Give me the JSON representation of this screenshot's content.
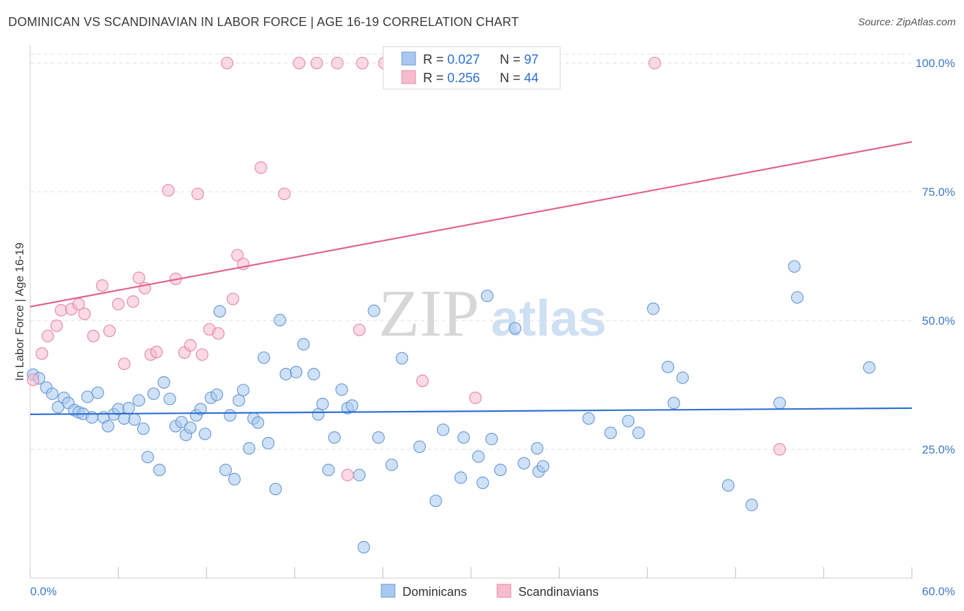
{
  "title": "DOMINICAN VS SCANDINAVIAN IN LABOR FORCE | AGE 16-19 CORRELATION CHART",
  "source": "Source: ZipAtlas.com",
  "watermark": {
    "zip": "ZIP",
    "atlas": "atlas"
  },
  "colors": {
    "blue_fill": "#a8c8ef",
    "blue_stroke": "#6b9bd8",
    "blue_line": "#2d6fd1",
    "pink_fill": "#f6bccd",
    "pink_stroke": "#e88aa6",
    "pink_line": "#e0628c",
    "axis_label": "#3b78c9",
    "grid": "#dcdcdc"
  },
  "legend_top": {
    "rows": [
      {
        "r_label": "R = ",
        "r_value": "0.027",
        "n_label": "N = ",
        "n_value": "97"
      },
      {
        "r_label": "R = ",
        "r_value": "0.256",
        "n_label": "N = ",
        "n_value": "44"
      }
    ]
  },
  "legend_bottom": [
    "Dominicans",
    "Scandinavians"
  ],
  "chart_data": {
    "type": "scatter",
    "title": "DOMINICAN VS SCANDINAVIAN IN LABOR FORCE | AGE 16-19 CORRELATION CHART",
    "xlabel": "",
    "ylabel": "In Labor Force | Age 16-19",
    "xlim": [
      0,
      60
    ],
    "ylim": [
      0,
      104
    ],
    "x_tick_labels": [
      "0.0%",
      "60.0%"
    ],
    "y_tick_labels": [
      "100.0%",
      "75.0%",
      "50.0%",
      "25.0%"
    ],
    "y_ticks": [
      100,
      75,
      50,
      25
    ],
    "grid": true,
    "legend_placement": "top-center",
    "series": [
      {
        "name": "Dominicans",
        "r": 0.027,
        "n": 97,
        "trend": [
          [
            0,
            31.8
          ],
          [
            60,
            33.0
          ]
        ],
        "points": [
          [
            0.2,
            39.5
          ],
          [
            0.6,
            38.8
          ],
          [
            1.1,
            37.0
          ],
          [
            1.5,
            35.8
          ],
          [
            1.9,
            33.2
          ],
          [
            2.3,
            35.0
          ],
          [
            2.6,
            34.0
          ],
          [
            3.0,
            32.6
          ],
          [
            3.3,
            32.2
          ],
          [
            3.6,
            31.9
          ],
          [
            3.9,
            35.2
          ],
          [
            4.2,
            31.2
          ],
          [
            4.6,
            36.0
          ],
          [
            5.0,
            31.2
          ],
          [
            5.3,
            29.5
          ],
          [
            5.7,
            31.8
          ],
          [
            6.0,
            32.8
          ],
          [
            6.4,
            31.0
          ],
          [
            6.7,
            33.0
          ],
          [
            7.1,
            30.8
          ],
          [
            7.4,
            34.5
          ],
          [
            7.7,
            29.0
          ],
          [
            8.0,
            23.5
          ],
          [
            8.4,
            35.8
          ],
          [
            8.8,
            21.0
          ],
          [
            9.1,
            38.0
          ],
          [
            9.5,
            34.8
          ],
          [
            9.9,
            29.5
          ],
          [
            10.3,
            30.3
          ],
          [
            10.6,
            27.8
          ],
          [
            10.9,
            29.2
          ],
          [
            11.3,
            31.6
          ],
          [
            11.6,
            32.8
          ],
          [
            11.9,
            28.0
          ],
          [
            12.3,
            35.0
          ],
          [
            12.7,
            35.6
          ],
          [
            12.9,
            51.8
          ],
          [
            13.3,
            21.0
          ],
          [
            13.6,
            31.6
          ],
          [
            13.9,
            19.2
          ],
          [
            14.2,
            34.5
          ],
          [
            14.5,
            36.5
          ],
          [
            14.9,
            25.2
          ],
          [
            15.2,
            31.0
          ],
          [
            15.5,
            30.2
          ],
          [
            15.9,
            42.8
          ],
          [
            16.2,
            26.2
          ],
          [
            16.7,
            17.3
          ],
          [
            17.0,
            50.1
          ],
          [
            17.4,
            39.6
          ],
          [
            18.1,
            40.0
          ],
          [
            18.6,
            45.4
          ],
          [
            19.3,
            39.6
          ],
          [
            19.6,
            31.8
          ],
          [
            19.9,
            33.8
          ],
          [
            20.3,
            21.0
          ],
          [
            20.7,
            27.3
          ],
          [
            21.2,
            36.6
          ],
          [
            21.6,
            33.0
          ],
          [
            21.9,
            33.5
          ],
          [
            22.4,
            20.0
          ],
          [
            22.7,
            6.0
          ],
          [
            23.4,
            51.9
          ],
          [
            23.7,
            27.3
          ],
          [
            24.6,
            22.0
          ],
          [
            25.3,
            42.7
          ],
          [
            26.5,
            25.5
          ],
          [
            27.6,
            15.0
          ],
          [
            28.1,
            28.8
          ],
          [
            29.3,
            19.5
          ],
          [
            29.5,
            27.3
          ],
          [
            30.5,
            23.6
          ],
          [
            30.8,
            18.5
          ],
          [
            31.1,
            54.8
          ],
          [
            31.4,
            27.0
          ],
          [
            32.0,
            21.0
          ],
          [
            33.0,
            48.5
          ],
          [
            33.6,
            22.3
          ],
          [
            34.6,
            20.7
          ],
          [
            34.9,
            21.7
          ],
          [
            34.5,
            25.2
          ],
          [
            38.0,
            31.0
          ],
          [
            39.5,
            28.2
          ],
          [
            40.7,
            30.5
          ],
          [
            41.4,
            28.2
          ],
          [
            42.4,
            52.3
          ],
          [
            43.4,
            41.0
          ],
          [
            43.8,
            34.0
          ],
          [
            44.4,
            38.9
          ],
          [
            47.5,
            18.0
          ],
          [
            49.1,
            14.2
          ],
          [
            51.0,
            34.0
          ],
          [
            52.0,
            60.5
          ],
          [
            52.2,
            54.5
          ],
          [
            57.1,
            40.9
          ]
        ]
      },
      {
        "name": "Scandinavians",
        "r": 0.256,
        "n": 44,
        "trend": [
          [
            0,
            52.7
          ],
          [
            60,
            84.7
          ]
        ],
        "points": [
          [
            0.2,
            38.5
          ],
          [
            0.8,
            43.6
          ],
          [
            1.2,
            47.0
          ],
          [
            1.8,
            49.0
          ],
          [
            2.1,
            52.0
          ],
          [
            2.8,
            52.2
          ],
          [
            3.3,
            53.2
          ],
          [
            3.7,
            51.3
          ],
          [
            4.3,
            47.0
          ],
          [
            4.9,
            56.8
          ],
          [
            5.4,
            48.0
          ],
          [
            6.0,
            53.2
          ],
          [
            6.4,
            41.6
          ],
          [
            7.0,
            53.7
          ],
          [
            7.4,
            58.3
          ],
          [
            7.8,
            56.3
          ],
          [
            8.2,
            43.4
          ],
          [
            8.6,
            43.9
          ],
          [
            9.4,
            75.3
          ],
          [
            9.9,
            58.1
          ],
          [
            10.5,
            43.8
          ],
          [
            10.9,
            45.2
          ],
          [
            11.4,
            74.6
          ],
          [
            11.7,
            43.4
          ],
          [
            12.2,
            48.3
          ],
          [
            12.8,
            47.5
          ],
          [
            13.4,
            100.0
          ],
          [
            13.8,
            54.2
          ],
          [
            14.1,
            62.7
          ],
          [
            14.5,
            61.0
          ],
          [
            15.7,
            79.7
          ],
          [
            17.3,
            74.6
          ],
          [
            18.3,
            100.0
          ],
          [
            19.5,
            100.0
          ],
          [
            20.9,
            100.0
          ],
          [
            21.6,
            20.0
          ],
          [
            22.4,
            48.2
          ],
          [
            22.6,
            100.0
          ],
          [
            24.1,
            100.0
          ],
          [
            26.7,
            38.3
          ],
          [
            30.3,
            35.0
          ],
          [
            42.5,
            100.0
          ],
          [
            51.0,
            25.0
          ]
        ]
      }
    ]
  }
}
